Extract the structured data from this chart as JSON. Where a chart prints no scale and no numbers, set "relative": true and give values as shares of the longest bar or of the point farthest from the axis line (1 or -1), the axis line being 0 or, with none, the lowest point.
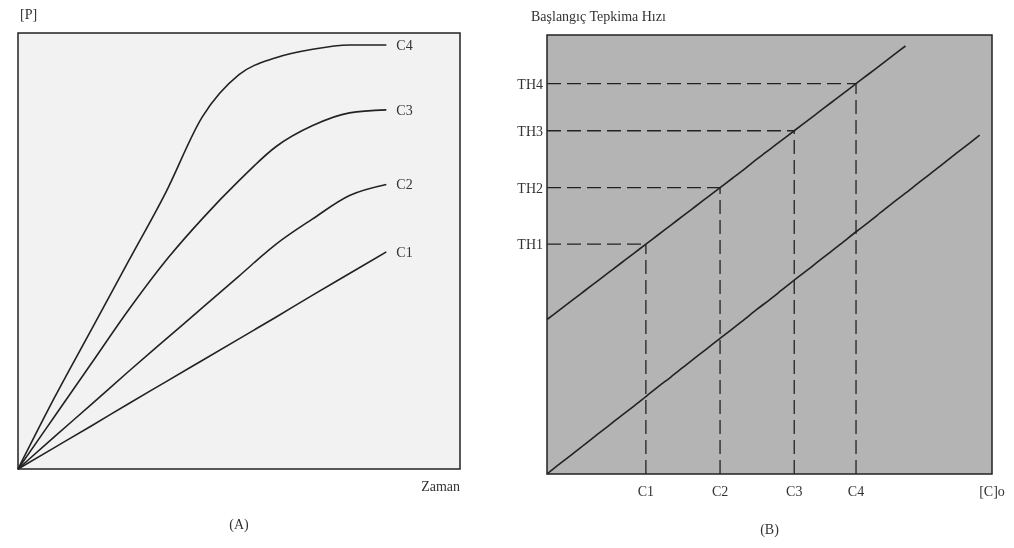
{
  "chart_data": [
    {
      "type": "line",
      "ylabel": "[P]",
      "xlabel": "Zaman",
      "annotations": [
        "(A)"
      ],
      "relative": true,
      "categories": [
        null,
        null,
        null,
        null,
        null,
        null,
        null,
        null,
        null,
        null,
        null,
        null,
        null
      ],
      "series": [
        {
          "name": "C4",
          "color": "#222222",
          "values": [
            0,
            0.17,
            0.33,
            0.49,
            0.65,
            0.83,
            0.93,
            0.97,
            0.99,
            1.0,
            1.0,
            null,
            null
          ]
        },
        {
          "name": "C3",
          "color": "#222222",
          "values": [
            0,
            0.125,
            0.25,
            0.375,
            0.49,
            0.59,
            0.68,
            0.76,
            0.81,
            0.84,
            0.847,
            null,
            null
          ]
        },
        {
          "name": "C2",
          "color": "#222222",
          "values": [
            0,
            0.077,
            0.153,
            0.23,
            0.305,
            0.38,
            0.455,
            0.53,
            0.59,
            0.645,
            0.671,
            null,
            null
          ]
        },
        {
          "name": "C1",
          "color": "#222222",
          "values": [
            0,
            0.051,
            0.102,
            0.154,
            0.205,
            0.256,
            0.307,
            0.358,
            0.41,
            0.461,
            0.512,
            null,
            null
          ]
        }
      ]
    },
    {
      "type": "line",
      "ylabel": "Başlangıç Tepkima Hızı",
      "xlabel": "[C]o",
      "annotations": [
        "(B)"
      ],
      "relative": true,
      "categories": [
        null,
        null,
        null,
        null,
        null,
        null,
        null,
        null,
        "C1",
        null,
        null,
        null,
        null,
        null,
        "C2",
        null,
        null,
        null,
        null,
        null,
        "C3",
        null,
        null,
        null,
        null,
        "C4",
        null,
        null,
        null,
        null,
        null,
        null,
        null,
        null,
        null,
        null,
        null
      ],
      "series": [
        {
          "color": "#222222",
          "values": [
            0.361,
            0.383,
            0.405,
            0.427,
            0.449,
            0.471,
            0.493,
            0.515,
            0.537,
            0.559,
            0.581,
            0.603,
            0.625,
            0.647,
            0.669,
            0.691,
            0.713,
            0.736,
            0.758,
            0.78,
            0.802,
            0.824,
            0.846,
            0.868,
            0.89,
            0.912,
            0.934,
            0.956,
            0.978,
            1.0,
            null,
            null,
            null,
            null,
            null,
            null,
            null
          ]
        },
        {
          "color": "#222222",
          "values": [
            0,
            0.023,
            0.045,
            0.068,
            0.091,
            0.113,
            0.136,
            0.158,
            0.181,
            0.204,
            0.226,
            0.249,
            0.272,
            0.294,
            0.317,
            0.339,
            0.362,
            0.385,
            0.407,
            0.43,
            0.453,
            0.475,
            0.498,
            0.52,
            0.543,
            0.566,
            0.588,
            0.611,
            0.634,
            0.656,
            0.679,
            0.701,
            0.724,
            0.747,
            0.769,
            0.792,
            null
          ]
        }
      ],
      "ref_lines": [
        {
          "axis": "x",
          "value": "C1",
          "line_style": "dashed"
        },
        {
          "axis": "x",
          "value": "C2",
          "line_style": "dashed"
        },
        {
          "axis": "x",
          "value": "C3",
          "line_style": "dashed"
        },
        {
          "axis": "x",
          "value": "C4",
          "line_style": "dashed"
        },
        {
          "axis": "y",
          "value": 0.537,
          "label": "TH1",
          "line_style": "dashed"
        },
        {
          "axis": "y",
          "value": 0.669,
          "label": "TH2",
          "line_style": "dashed"
        },
        {
          "axis": "y",
          "value": 0.802,
          "label": "TH3",
          "line_style": "dashed"
        },
        {
          "axis": "y",
          "value": 0.912,
          "label": "TH4",
          "line_style": "dashed"
        }
      ]
    }
  ]
}
